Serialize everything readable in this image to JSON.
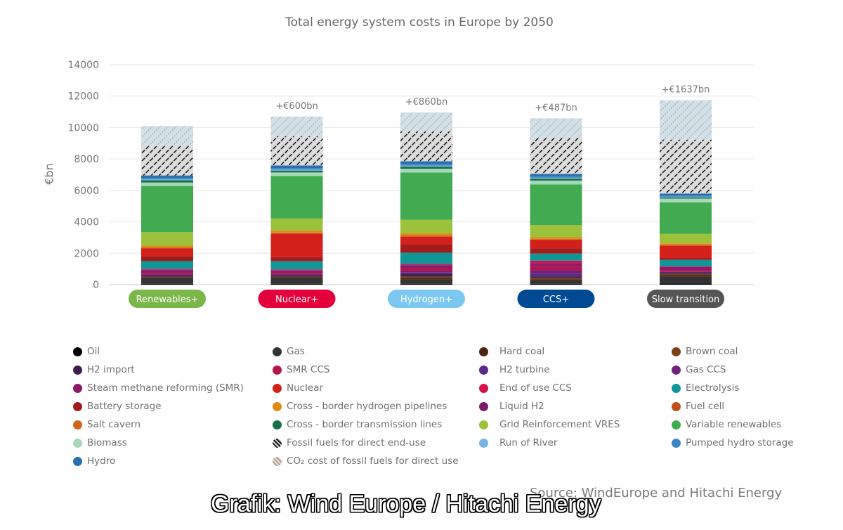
{
  "chart_data": {
    "type": "bar",
    "stacked": true,
    "title": "Total energy system costs in Europe by 2050",
    "ylabel": "€bn",
    "xlabel": "",
    "ylim": [
      0,
      14000
    ],
    "yticks": [
      0,
      2000,
      4000,
      6000,
      8000,
      10000,
      12000,
      14000
    ],
    "grid": true,
    "legend_position": "bottom",
    "categories": [
      "Renewables+",
      "Nuclear+",
      "Hydrogen+",
      "CCS+",
      "Slow transition"
    ],
    "category_colors": [
      "#7ab648",
      "#e4003a",
      "#7dc8f0",
      "#004a94",
      "#555555"
    ],
    "category_text_colors": [
      "#ffffff",
      "#ffffff",
      "#ffffff",
      "#ffffff",
      "#ffffff"
    ],
    "annotations": [
      "",
      "+€600bn",
      "+€860bn",
      "+€487bn",
      "+€1637bn"
    ],
    "series": [
      {
        "name": "Oil",
        "color": "#000000",
        "values": [
          50,
          50,
          50,
          50,
          80
        ]
      },
      {
        "name": "Gas",
        "color": "#333333",
        "values": [
          350,
          380,
          280,
          200,
          440
        ]
      },
      {
        "name": "Hard coal",
        "color": "#4a2511",
        "values": [
          50,
          40,
          100,
          90,
          100
        ]
      },
      {
        "name": "Brown coal",
        "color": "#7a4219",
        "values": [
          50,
          40,
          90,
          90,
          80
        ]
      },
      {
        "name": "H2 import",
        "color": "#3d1f4f",
        "values": [
          100,
          100,
          150,
          100,
          60
        ]
      },
      {
        "name": "H2 turbine",
        "color": "#5b2a86",
        "values": [
          50,
          40,
          100,
          150,
          60
        ]
      },
      {
        "name": "Gas CCS",
        "color": "#6e2278",
        "values": [
          0,
          0,
          80,
          240,
          0
        ]
      },
      {
        "name": "SMR CCS",
        "color": "#b5154f",
        "values": [
          100,
          100,
          200,
          250,
          100
        ]
      },
      {
        "name": "Steam methane reforming (SMR)",
        "color": "#8c1a6a",
        "values": [
          150,
          150,
          170,
          170,
          200
        ]
      },
      {
        "name": "Liquid H2",
        "color": "#7c1d6a",
        "values": [
          50,
          30,
          60,
          40,
          30
        ]
      },
      {
        "name": "End of use CCS",
        "color": "#d4124b",
        "values": [
          50,
          40,
          50,
          150,
          30
        ]
      },
      {
        "name": "Electrolysis",
        "color": "#0f9696",
        "values": [
          500,
          520,
          700,
          450,
          400
        ]
      },
      {
        "name": "Battery storage",
        "color": "#a11d1d",
        "values": [
          320,
          270,
          520,
          340,
          120
        ]
      },
      {
        "name": "Nuclear",
        "color": "#d4201b",
        "values": [
          480,
          1490,
          500,
          520,
          780
        ]
      },
      {
        "name": "Fuel cell",
        "color": "#c0501b",
        "values": [
          30,
          30,
          40,
          30,
          20
        ]
      },
      {
        "name": "Salt cavern",
        "color": "#d0661b",
        "values": [
          40,
          40,
          60,
          50,
          30
        ]
      },
      {
        "name": "Cross - border hydrogen pipelines",
        "color": "#e08a12",
        "values": [
          110,
          120,
          120,
          100,
          100
        ]
      },
      {
        "name": "Grid Reinforcement VRES",
        "color": "#9cc23c",
        "values": [
          860,
          770,
          860,
          775,
          600
        ]
      },
      {
        "name": "Variable renewables",
        "color": "#42ab52",
        "values": [
          2940,
          2710,
          3010,
          2580,
          2010
        ]
      },
      {
        "name": "Biomass",
        "color": "#a6d8b8",
        "values": [
          220,
          220,
          240,
          250,
          240
        ]
      },
      {
        "name": "Cross - border transmission lines",
        "color": "#17704a",
        "values": [
          150,
          120,
          130,
          120,
          70
        ]
      },
      {
        "name": "Run of River",
        "color": "#7ab3e0",
        "values": [
          60,
          60,
          70,
          60,
          50
        ]
      },
      {
        "name": "Pumped hydro storage",
        "color": "#3a86c4",
        "values": [
          80,
          100,
          100,
          90,
          80
        ]
      },
      {
        "name": "Hydro",
        "color": "#2a6faf",
        "values": [
          160,
          170,
          170,
          150,
          120
        ]
      },
      {
        "name": "Fossil fuels for direct end-use",
        "color": "pattern-fossil",
        "values": [
          1860,
          1860,
          1900,
          2280,
          3430
        ]
      },
      {
        "name": "CO₂ cost of fossil fuels for direct use",
        "color": "pattern-co2",
        "values": [
          1290,
          1250,
          1210,
          1262,
          2507
        ]
      }
    ],
    "legend_order": [
      "Oil",
      "Gas",
      "Hard coal",
      "Brown coal",
      "H2 import",
      "SMR CCS",
      "H2 turbine",
      "Gas CCS",
      "Steam methane reforming (SMR)",
      "Nuclear",
      "End of use CCS",
      "Electrolysis",
      "Battery storage",
      "Cross - border hydrogen pipelines",
      "Liquid H2",
      "Fuel cell",
      "Salt cavern",
      "Cross - border transmission lines",
      "Grid Reinforcement VRES",
      "Variable renewables",
      "Biomass",
      "Fossil fuels for direct end-use",
      "Run of River",
      "Pumped hydro storage",
      "Hydro",
      "CO₂ cost of fossil fuels for direct use"
    ]
  },
  "footer": {
    "source": "Source: WindEurope and Hitachi Energy",
    "credit": "Grafik: Wind Europe / Hitachi Energy"
  }
}
